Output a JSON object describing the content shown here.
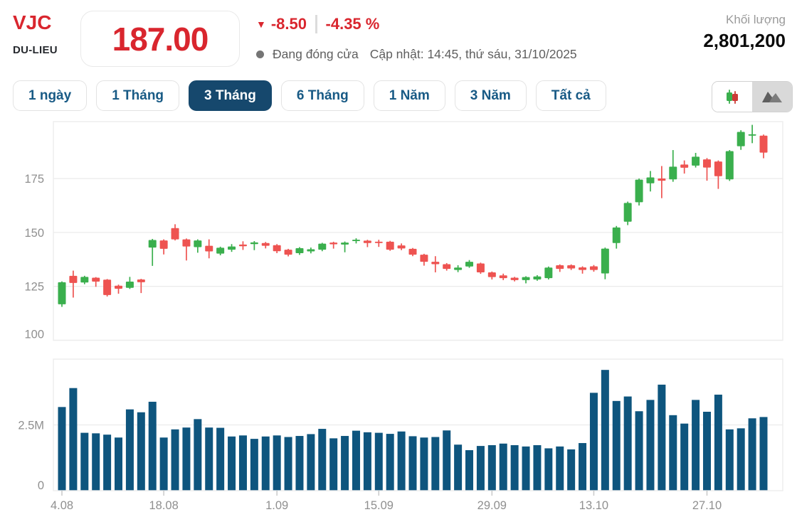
{
  "header": {
    "symbol": "VJC",
    "exchange": "DU-LIEU",
    "price": "187.00",
    "change_direction_icon": "triangle-down-icon",
    "change": "-8.50",
    "change_percent": "-4.35 %",
    "status": "Đang đóng cửa",
    "updated": "Cập nhật: 14:45, thứ sáu, 31/10/2025",
    "volume_label": "Khối lượng",
    "volume_value": "2,801,200"
  },
  "colors": {
    "accent_red": "#d9262e",
    "candle_up": "#3aaf4d",
    "candle_down": "#ee5351",
    "volume_bar": "#0e557e",
    "tab_active_bg": "#16486d",
    "tab_text": "#185a85",
    "grid": "#ececec",
    "axis_label": "#8f8f8f"
  },
  "ranges": [
    {
      "label": "1 ngày",
      "active": false
    },
    {
      "label": "1 Tháng",
      "active": false
    },
    {
      "label": "3 Tháng",
      "active": true
    },
    {
      "label": "6 Tháng",
      "active": false
    },
    {
      "label": "1 Năm",
      "active": false
    },
    {
      "label": "3 Năm",
      "active": false
    },
    {
      "label": "Tất cả",
      "active": false
    }
  ],
  "chart_toggle": {
    "options": [
      "candlestick-chart",
      "area-chart"
    ],
    "selected": "area-chart"
  },
  "chart_data": {
    "type": "candlestick+volume",
    "title": "",
    "xlabel": "",
    "ylabel": "",
    "grid": true,
    "price_axis": {
      "min": 100,
      "max": 201.4,
      "ticks": [
        175,
        150,
        125,
        100
      ]
    },
    "volume_axis": {
      "min_m": 0,
      "max_m": 5.0,
      "ticks": [
        {
          "value_m": 2.5,
          "label": "2.5M"
        },
        {
          "value_m": 0,
          "label": "0"
        }
      ]
    },
    "x_ticks": [
      {
        "index": 0,
        "label": "4.08"
      },
      {
        "index": 9,
        "label": "18.08"
      },
      {
        "index": 19,
        "label": "1.09"
      },
      {
        "index": 28,
        "label": "15.09"
      },
      {
        "index": 38,
        "label": "29.09"
      },
      {
        "index": 47,
        "label": "13.10"
      },
      {
        "index": 57,
        "label": "27.10"
      }
    ],
    "candles_ohlc": [
      [
        116.7,
        127.3,
        115.5,
        126.9
      ],
      [
        129.9,
        132.3,
        119.8,
        126.6
      ],
      [
        126.8,
        129.9,
        126.0,
        129.4
      ],
      [
        129.0,
        129.3,
        124.8,
        127.2
      ],
      [
        128.1,
        128.4,
        120.3,
        121.0
      ],
      [
        125.3,
        125.8,
        121.6,
        123.9
      ],
      [
        124.3,
        129.4,
        123.8,
        127.2
      ],
      [
        128.2,
        128.5,
        121.9,
        126.9
      ],
      [
        143.0,
        147.0,
        134.5,
        146.5
      ],
      [
        146.3,
        146.8,
        139.8,
        142.4
      ],
      [
        152.0,
        153.8,
        146.3,
        146.8
      ],
      [
        146.8,
        147.2,
        137.0,
        143.5
      ],
      [
        143.2,
        146.8,
        140.6,
        146.3
      ],
      [
        143.8,
        146.8,
        138.0,
        141.2
      ],
      [
        140.2,
        143.4,
        139.4,
        142.9
      ],
      [
        142.0,
        144.6,
        141.0,
        143.5
      ],
      [
        144.4,
        145.9,
        141.9,
        143.6
      ],
      [
        144.6,
        146.0,
        141.8,
        145.4
      ],
      [
        145.1,
        145.6,
        142.6,
        143.8
      ],
      [
        144.1,
        144.6,
        140.4,
        141.3
      ],
      [
        142.0,
        142.4,
        138.9,
        139.7
      ],
      [
        140.4,
        143.2,
        139.6,
        142.7
      ],
      [
        141.2,
        143.0,
        140.3,
        142.2
      ],
      [
        142.0,
        145.2,
        141.3,
        144.8
      ],
      [
        145.3,
        145.7,
        142.5,
        144.5
      ],
      [
        144.4,
        145.8,
        140.8,
        145.3
      ],
      [
        146.0,
        147.3,
        144.9,
        146.6
      ],
      [
        146.2,
        146.6,
        143.2,
        145.1
      ],
      [
        145.7,
        146.6,
        143.3,
        145.2
      ],
      [
        145.7,
        146.1,
        141.5,
        142.0
      ],
      [
        144.0,
        144.9,
        141.8,
        142.6
      ],
      [
        142.4,
        142.8,
        139.0,
        139.7
      ],
      [
        139.7,
        140.1,
        134.6,
        136.4
      ],
      [
        136.4,
        139.0,
        131.5,
        135.3
      ],
      [
        135.3,
        135.8,
        132.3,
        133.1
      ],
      [
        132.6,
        134.8,
        131.6,
        133.7
      ],
      [
        134.2,
        137.2,
        133.6,
        136.4
      ],
      [
        135.6,
        136.0,
        130.8,
        131.5
      ],
      [
        131.5,
        131.9,
        128.2,
        129.3
      ],
      [
        130.1,
        130.9,
        127.9,
        128.8
      ],
      [
        129.0,
        129.4,
        127.3,
        127.9
      ],
      [
        127.9,
        129.7,
        126.4,
        129.3
      ],
      [
        128.2,
        130.2,
        127.6,
        129.6
      ],
      [
        128.8,
        134.2,
        128.2,
        133.7
      ],
      [
        134.8,
        135.2,
        131.7,
        133.1
      ],
      [
        134.8,
        135.2,
        132.6,
        133.3
      ],
      [
        133.8,
        134.3,
        130.9,
        132.6
      ],
      [
        134.3,
        134.9,
        131.8,
        132.6
      ],
      [
        131.0,
        143.0,
        128.3,
        142.5
      ],
      [
        145.1,
        153.0,
        142.5,
        152.3
      ],
      [
        155.0,
        164.3,
        153.4,
        163.7
      ],
      [
        164.0,
        175.0,
        162.5,
        174.5
      ],
      [
        172.8,
        178.5,
        169.0,
        175.5
      ],
      [
        175.0,
        180.8,
        165.9,
        174.0
      ],
      [
        174.6,
        188.2,
        173.5,
        180.5
      ],
      [
        181.5,
        183.4,
        177.3,
        180.0
      ],
      [
        181.0,
        186.9,
        180.1,
        185.1
      ],
      [
        183.9,
        184.5,
        174.0,
        180.1
      ],
      [
        182.9,
        183.4,
        170.2,
        176.1
      ],
      [
        174.6,
        188.2,
        173.9,
        187.7
      ],
      [
        190.0,
        197.4,
        188.3,
        196.6
      ],
      [
        195.3,
        199.9,
        191.4,
        195.5
      ],
      [
        194.9,
        195.4,
        184.4,
        187.0
      ]
    ],
    "volumes_m": [
      3.18,
      3.9,
      2.2,
      2.18,
      2.13,
      2.02,
      3.09,
      2.98,
      3.38,
      2.02,
      2.33,
      2.4,
      2.72,
      2.4,
      2.39,
      2.06,
      2.1,
      1.97,
      2.06,
      2.1,
      2.04,
      2.08,
      2.15,
      2.35,
      1.99,
      2.08,
      2.28,
      2.22,
      2.2,
      2.16,
      2.25,
      2.07,
      2.02,
      2.04,
      2.29,
      1.75,
      1.54,
      1.7,
      1.73,
      1.79,
      1.73,
      1.68,
      1.73,
      1.61,
      1.68,
      1.57,
      1.81,
      3.72,
      4.59,
      3.41,
      3.58,
      3.02,
      3.45,
      4.03,
      2.87,
      2.55,
      3.45,
      3.0,
      3.65,
      2.33,
      2.37,
      2.75,
      2.8
    ]
  }
}
